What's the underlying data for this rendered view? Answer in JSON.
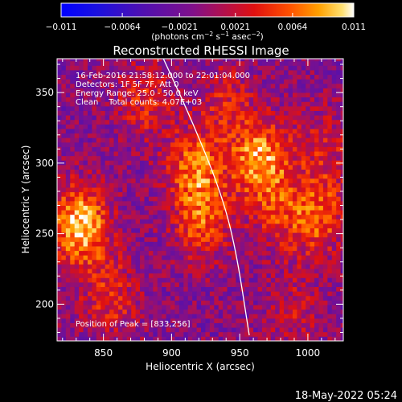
{
  "chart_data": {
    "type": "heatmap",
    "title": "Reconstructed RHESSI Image",
    "xlabel": "Heliocentric X (arcsec)",
    "ylabel": "Heliocentric Y (arcsec)",
    "xlim": [
      816,
      1026
    ],
    "ylim": [
      174,
      374
    ],
    "x_ticks": [
      850,
      900,
      950,
      1000
    ],
    "y_ticks": [
      200,
      250,
      300,
      350
    ],
    "colorbar": {
      "range": [
        -0.011,
        0.011
      ],
      "tick_labels": [
        "−0.011",
        "−0.0064",
        "−0.0021",
        "0.0021",
        "0.0064",
        "0.011"
      ],
      "tick_values": [
        -0.011,
        -0.0064,
        -0.0021,
        0.0021,
        0.0064,
        0.011
      ],
      "unit_base": "(photons cm",
      "unit_exp1": "−2",
      "unit_mid": " s",
      "unit_exp2": "−1",
      "unit_end": " asec",
      "unit_exp3": "−2",
      "unit_close": ")"
    },
    "annotations": {
      "time_range": "16-Feb-2016 21:58:12.000 to 22:01:04.000",
      "detectors": "Detectors: 1F 5F 7F, Att 0",
      "energy": "Energy Range: 25.0 - 50.0 keV",
      "clean": "Clean    Total counts: 4.07E+03",
      "peak": "Position of Peak = [833,256]"
    },
    "sources": [
      {
        "x": 918,
        "y": 297,
        "peak": 0.0078
      },
      {
        "x": 922,
        "y": 258,
        "peak": 0.0062
      },
      {
        "x": 965,
        "y": 303,
        "peak": 0.0095
      },
      {
        "x": 978,
        "y": 265,
        "peak": 0.0045
      },
      {
        "x": 833,
        "y": 256,
        "peak": 0.011
      },
      {
        "x": 855,
        "y": 205,
        "peak": 0.0052
      },
      {
        "x": 1008,
        "y": 262,
        "peak": 0.0068
      },
      {
        "x": 1012,
        "y": 312,
        "peak": 0.004
      },
      {
        "x": 880,
        "y": 345,
        "peak": 0.0048
      },
      {
        "x": 940,
        "y": 345,
        "peak": 0.0038
      },
      {
        "x": 990,
        "y": 195,
        "peak": 0.0032
      }
    ],
    "limb_curve": [
      [
        894,
        374
      ],
      [
        915,
        330
      ],
      [
        936,
        280
      ],
      [
        947,
        240
      ],
      [
        957,
        178
      ]
    ]
  },
  "footer": {
    "timestamp": "18-May-2022 05:24"
  }
}
